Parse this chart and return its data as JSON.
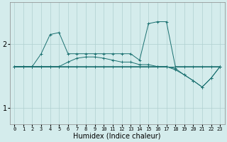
{
  "xlabel": "Humidex (Indice chaleur)",
  "background_color": "#d4ecec",
  "grid_color": "#afd0d0",
  "line_color": "#1a7070",
  "x_values": [
    0,
    1,
    2,
    3,
    4,
    5,
    6,
    7,
    8,
    9,
    10,
    11,
    12,
    13,
    14,
    15,
    16,
    17,
    18,
    19,
    20,
    21,
    22,
    23
  ],
  "series1": [
    1.65,
    1.65,
    1.65,
    1.85,
    2.15,
    2.18,
    1.85,
    1.85,
    1.85,
    1.85,
    1.85,
    1.85,
    1.85,
    1.85,
    1.75,
    2.32,
    2.35,
    2.35,
    1.65,
    1.65,
    1.65,
    1.65,
    1.65,
    1.65
  ],
  "series2": [
    1.65,
    1.65,
    1.65,
    1.65,
    1.65,
    1.65,
    1.72,
    1.78,
    1.8,
    1.8,
    1.78,
    1.75,
    1.72,
    1.72,
    1.68,
    1.68,
    1.65,
    1.65,
    1.6,
    1.52,
    1.43,
    1.33,
    1.47,
    1.65
  ],
  "series3": [
    1.65,
    1.65,
    1.65,
    1.65,
    1.65,
    1.65,
    1.65,
    1.65,
    1.65,
    1.65,
    1.65,
    1.65,
    1.65,
    1.65,
    1.65,
    1.65,
    1.65,
    1.65,
    1.65,
    1.65,
    1.65,
    1.65,
    1.65,
    1.65
  ],
  "series4": [
    1.65,
    1.65,
    1.65,
    1.65,
    1.65,
    1.65,
    1.65,
    1.65,
    1.65,
    1.65,
    1.65,
    1.65,
    1.65,
    1.65,
    1.65,
    1.65,
    1.65,
    1.65,
    1.62,
    1.52,
    1.43,
    1.33,
    1.47,
    1.65
  ],
  "ylim": [
    0.75,
    2.65
  ],
  "yticks": [
    1,
    2
  ],
  "xticks": [
    0,
    1,
    2,
    3,
    4,
    5,
    6,
    7,
    8,
    9,
    10,
    11,
    12,
    13,
    14,
    15,
    16,
    17,
    18,
    19,
    20,
    21,
    22,
    23
  ]
}
